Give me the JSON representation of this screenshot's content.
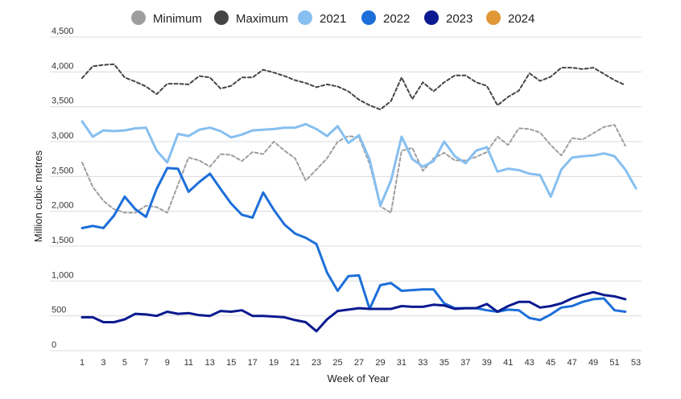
{
  "chart_data": {
    "type": "line",
    "title": "",
    "xlabel": "Week of Year",
    "ylabel": "Million cubic metres",
    "xlim": [
      1,
      53
    ],
    "ylim": [
      0,
      4500
    ],
    "grid": true,
    "legend_position": "top-center",
    "x_ticks": [
      1,
      3,
      5,
      7,
      9,
      11,
      13,
      15,
      17,
      19,
      21,
      23,
      25,
      27,
      29,
      31,
      33,
      35,
      37,
      39,
      41,
      43,
      45,
      47,
      49,
      51,
      53
    ],
    "y_ticks": [
      0,
      500,
      1000,
      1500,
      2000,
      2500,
      3000,
      3500,
      4000,
      4500
    ],
    "y_tick_labels": [
      "0",
      "500",
      "1,000",
      "1,500",
      "2,000",
      "2,500",
      "3,000",
      "3,500",
      "4,000",
      "4,500"
    ],
    "series": [
      {
        "name": "Minimum",
        "color": "#9e9e9e",
        "style": "dashed",
        "x": [
          1,
          2,
          3,
          4,
          5,
          6,
          7,
          8,
          9,
          10,
          11,
          12,
          13,
          14,
          15,
          16,
          17,
          18,
          19,
          20,
          21,
          22,
          23,
          24,
          25,
          26,
          27,
          28,
          29,
          30,
          31,
          32,
          33,
          34,
          35,
          36,
          37,
          38,
          39,
          40,
          41,
          42,
          43,
          44,
          45,
          46,
          47,
          48,
          49,
          50,
          51,
          52
        ],
        "values": [
          2700,
          2350,
          2150,
          2030,
          1980,
          1980,
          2080,
          2060,
          1980,
          2380,
          2770,
          2730,
          2640,
          2820,
          2810,
          2720,
          2850,
          2820,
          3000,
          2870,
          2760,
          2440,
          2600,
          2760,
          3000,
          3080,
          3060,
          2680,
          2070,
          1980,
          2870,
          2910,
          2580,
          2760,
          2840,
          2730,
          2730,
          2780,
          2850,
          3070,
          2950,
          3190,
          3180,
          3130,
          2950,
          2800,
          3050,
          3030,
          3120,
          3210,
          3240,
          2940
        ]
      },
      {
        "name": "Maximum",
        "color": "#444444",
        "style": "dashed",
        "x": [
          1,
          2,
          3,
          4,
          5,
          6,
          7,
          8,
          9,
          10,
          11,
          12,
          13,
          14,
          15,
          16,
          17,
          18,
          19,
          20,
          21,
          22,
          23,
          24,
          25,
          26,
          27,
          28,
          29,
          30,
          31,
          32,
          33,
          34,
          35,
          36,
          37,
          38,
          39,
          40,
          41,
          42,
          43,
          44,
          45,
          46,
          47,
          48,
          49,
          50,
          51,
          52
        ],
        "values": [
          3910,
          4080,
          4100,
          4110,
          3920,
          3860,
          3790,
          3680,
          3830,
          3830,
          3820,
          3940,
          3920,
          3760,
          3800,
          3920,
          3920,
          4030,
          3990,
          3940,
          3880,
          3840,
          3780,
          3820,
          3790,
          3720,
          3600,
          3520,
          3460,
          3580,
          3920,
          3610,
          3850,
          3720,
          3850,
          3950,
          3950,
          3850,
          3800,
          3520,
          3640,
          3730,
          3980,
          3870,
          3930,
          4060,
          4060,
          4040,
          4060,
          3970,
          3880,
          3810
        ]
      },
      {
        "name": "2021",
        "color": "#86bff0",
        "style": "solid",
        "x": [
          1,
          2,
          3,
          4,
          5,
          6,
          7,
          8,
          9,
          10,
          11,
          12,
          13,
          14,
          15,
          16,
          17,
          18,
          19,
          20,
          21,
          22,
          23,
          24,
          25,
          26,
          27,
          28,
          29,
          30,
          31,
          32,
          33,
          34,
          35,
          36,
          37,
          38,
          39,
          40,
          41,
          42,
          43,
          44,
          45,
          46,
          47,
          48,
          49,
          50,
          51,
          52,
          53
        ],
        "values": [
          3290,
          3070,
          3160,
          3150,
          3160,
          3190,
          3200,
          2870,
          2700,
          3110,
          3080,
          3170,
          3200,
          3150,
          3060,
          3100,
          3160,
          3170,
          3180,
          3200,
          3200,
          3250,
          3180,
          3080,
          3220,
          2980,
          3090,
          2740,
          2080,
          2440,
          3070,
          2750,
          2640,
          2720,
          3000,
          2790,
          2690,
          2870,
          2920,
          2570,
          2610,
          2590,
          2540,
          2520,
          2210,
          2600,
          2770,
          2790,
          2800,
          2830,
          2790,
          2600,
          2330
        ]
      },
      {
        "name": "2022",
        "color": "#1c6fd9",
        "style": "solid",
        "x": [
          1,
          2,
          3,
          4,
          5,
          6,
          7,
          8,
          9,
          10,
          11,
          12,
          13,
          14,
          15,
          16,
          17,
          18,
          19,
          20,
          21,
          22,
          23,
          24,
          25,
          26,
          27,
          28,
          29,
          30,
          31,
          32,
          33,
          34,
          35,
          36,
          37,
          38,
          39,
          40,
          41,
          42,
          43,
          44,
          45,
          46,
          47,
          48,
          49,
          50,
          51,
          52
        ],
        "values": [
          1760,
          1790,
          1760,
          1940,
          2210,
          2030,
          1920,
          2320,
          2620,
          2610,
          2280,
          2420,
          2540,
          2320,
          2110,
          1950,
          1910,
          2270,
          2020,
          1810,
          1680,
          1620,
          1530,
          1120,
          860,
          1070,
          1080,
          600,
          940,
          970,
          860,
          870,
          880,
          880,
          680,
          610,
          610,
          610,
          580,
          560,
          590,
          580,
          470,
          440,
          520,
          620,
          640,
          700,
          740,
          750,
          580,
          560
        ]
      },
      {
        "name": "2023",
        "color": "#0b1a8f",
        "style": "solid",
        "x": [
          1,
          2,
          3,
          4,
          5,
          6,
          7,
          8,
          9,
          10,
          11,
          12,
          13,
          14,
          15,
          16,
          17,
          18,
          19,
          20,
          21,
          22,
          23,
          24,
          25,
          26,
          27,
          28,
          29,
          30,
          31,
          32,
          33,
          34,
          35,
          36,
          37,
          38,
          39,
          40,
          41,
          42,
          43,
          44,
          45,
          46,
          47,
          48,
          49,
          50,
          51,
          52
        ],
        "values": [
          480,
          480,
          410,
          410,
          450,
          530,
          520,
          500,
          560,
          530,
          540,
          510,
          500,
          570,
          560,
          580,
          500,
          500,
          490,
          480,
          440,
          410,
          280,
          450,
          570,
          590,
          610,
          600,
          600,
          600,
          640,
          630,
          630,
          660,
          650,
          600,
          610,
          610,
          670,
          560,
          640,
          700,
          700,
          620,
          640,
          680,
          750,
          800,
          840,
          800,
          780,
          740
        ]
      },
      {
        "name": "2024",
        "color": "#e09836",
        "style": "solid",
        "x": [],
        "values": []
      }
    ]
  }
}
